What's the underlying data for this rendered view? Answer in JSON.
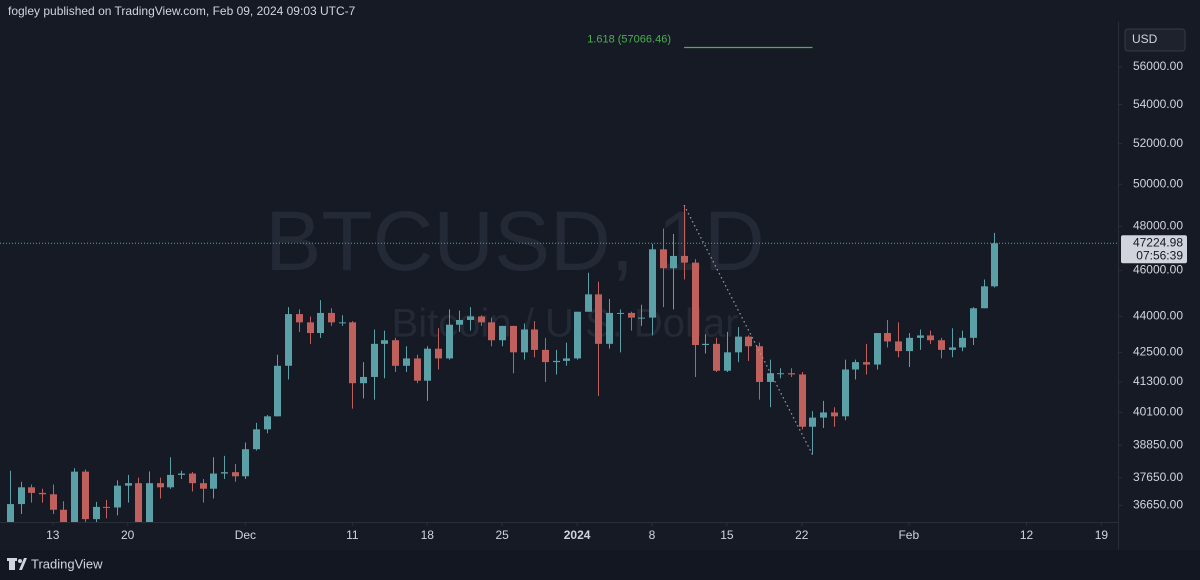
{
  "header": "fogley published on TradingView.com, Feb 09, 2024 09:03 UTC-7",
  "footer": "TradingView",
  "chart_data": {
    "type": "candlestick",
    "watermark": "BTCUSD, 1D",
    "watermark_subtitle": "Bitcoin / U.S. Dollar",
    "currency": "USD",
    "log_scale": true,
    "up_color": "#5aa0a6",
    "down_color": "#c0605d",
    "open": [
      35600,
      36700,
      37300,
      37100,
      37050,
      36500,
      35550,
      37870,
      36170,
      36600,
      36580,
      37360,
      37450,
      35800,
      37450,
      37300,
      37750,
      37800,
      37450,
      37250,
      37800,
      37850,
      37700,
      38700,
      39450,
      39950,
      41950,
      44100,
      43750,
      43300,
      44150,
      43750,
      43750,
      41250,
      41500,
      42850,
      43000,
      41950,
      42250,
      41350,
      42650,
      42250,
      43650,
      43850,
      44000,
      43750,
      43000,
      43600,
      42500,
      43450,
      42600,
      42100,
      42150,
      42250,
      44200,
      44950,
      42850,
      44150,
      44150,
      43950,
      43950,
      46950,
      46100,
      46650,
      46350,
      42800,
      42850,
      41750,
      42500,
      43150,
      42750,
      41300,
      41650,
      41650,
      41600,
      39550,
      39900,
      40100,
      39950,
      41800,
      42100,
      42000,
      43300,
      42950,
      42550,
      43100,
      43200,
      43000,
      42600,
      42700,
      43100,
      44350,
      45300
    ],
    "high": [
      37900,
      37500,
      37400,
      37250,
      37400,
      36800,
      38000,
      37950,
      36780,
      36850,
      37550,
      37750,
      37650,
      37880,
      37650,
      38400,
      37900,
      37850,
      37600,
      38400,
      38450,
      38150,
      38950,
      39700,
      40000,
      42400,
      44400,
      44300,
      44000,
      44700,
      44350,
      44050,
      43800,
      42100,
      43450,
      43400,
      43100,
      42750,
      42400,
      42750,
      43500,
      44300,
      44250,
      44400,
      44050,
      43950,
      43600,
      43600,
      43700,
      43800,
      43100,
      42600,
      42900,
      44200,
      45900,
      45500,
      44750,
      44300,
      44200,
      44500,
      47200,
      47900,
      47650,
      49000,
      46500,
      43250,
      43100,
      43350,
      43550,
      43200,
      42900,
      42200,
      41850,
      41850,
      41700,
      40150,
      40550,
      40300,
      42200,
      42200,
      42850,
      43300,
      43850,
      43750,
      43300,
      43450,
      43400,
      43100,
      43500,
      43400,
      44400,
      45600,
      47700
    ],
    "low": [
      35500,
      36350,
      36750,
      36750,
      36350,
      35100,
      35400,
      35600,
      35900,
      36200,
      36300,
      36750,
      35750,
      35650,
      36900,
      37250,
      37600,
      37150,
      36750,
      36900,
      37600,
      37500,
      37600,
      38650,
      39300,
      39950,
      41400,
      43350,
      42850,
      43100,
      43600,
      43600,
      40250,
      40650,
      40600,
      41450,
      41700,
      41700,
      41250,
      40550,
      41800,
      42200,
      43350,
      43400,
      43600,
      42750,
      42750,
      41650,
      42200,
      42300,
      41300,
      41600,
      41950,
      42200,
      44200,
      40750,
      42650,
      42500,
      43400,
      43600,
      43200,
      44400,
      44300,
      45600,
      41500,
      42450,
      41700,
      41700,
      42100,
      42150,
      40600,
      40300,
      41450,
      41500,
      39450,
      38500,
      39500,
      39550,
      39800,
      41400,
      41600,
      41800,
      42700,
      42300,
      41900,
      42600,
      42850,
      42250,
      42300,
      42550,
      42800,
      44350,
      45250
    ],
    "close": [
      36700,
      37300,
      37100,
      37050,
      36500,
      35550,
      37870,
      36170,
      36600,
      36580,
      37360,
      37450,
      35800,
      37450,
      37300,
      37750,
      37800,
      37450,
      37250,
      37800,
      37850,
      37700,
      38700,
      39450,
      39950,
      41950,
      44100,
      43750,
      43300,
      44150,
      43750,
      43750,
      41250,
      41500,
      42850,
      43000,
      41950,
      42250,
      41350,
      42650,
      42250,
      43650,
      43850,
      44000,
      43750,
      43000,
      43600,
      42500,
      43450,
      42600,
      42100,
      42150,
      42250,
      44200,
      44950,
      42850,
      44150,
      44150,
      43950,
      43950,
      46950,
      46100,
      46650,
      46350,
      42800,
      42850,
      41750,
      42500,
      43150,
      42750,
      41300,
      41650,
      41650,
      41600,
      39550,
      39900,
      40100,
      39950,
      41800,
      42100,
      42000,
      43300,
      42950,
      42550,
      43100,
      43200,
      43000,
      42600,
      42700,
      43100,
      44350,
      45300,
      47224.98
    ],
    "xlim": [
      -0.93,
      103.55
    ],
    "xticks": [
      {
        "value": 4,
        "label": "13"
      },
      {
        "value": 11,
        "label": "20"
      },
      {
        "value": 22,
        "label": "Dec"
      },
      {
        "value": 32,
        "label": "11"
      },
      {
        "value": 39,
        "label": "18"
      },
      {
        "value": 46,
        "label": "25"
      },
      {
        "value": 53,
        "label": "2024"
      },
      {
        "value": 60,
        "label": "8"
      },
      {
        "value": 67,
        "label": "15"
      },
      {
        "value": 74,
        "label": "22"
      },
      {
        "value": 84,
        "label": "Feb"
      },
      {
        "value": 95,
        "label": "12"
      },
      {
        "value": 102,
        "label": "19"
      }
    ],
    "ylim": [
      36070,
      58490
    ],
    "yticks": [
      {
        "value": 36650,
        "label": "36650.00"
      },
      {
        "value": 37650,
        "label": "37650.00"
      },
      {
        "value": 38850,
        "label": "38850.00"
      },
      {
        "value": 40100,
        "label": "40100.00"
      },
      {
        "value": 41300,
        "label": "41300.00"
      },
      {
        "value": 42500,
        "label": "42500.00"
      },
      {
        "value": 44000,
        "label": "44000.00"
      },
      {
        "value": 46000,
        "label": "46000.00"
      },
      {
        "value": 48000,
        "label": "48000.00"
      },
      {
        "value": 50000,
        "label": "50000.00"
      },
      {
        "value": 52000,
        "label": "52000.00"
      },
      {
        "value": 54000,
        "label": "54000.00"
      },
      {
        "value": 56000,
        "label": "56000.00"
      }
    ],
    "last_price": 47224.98,
    "countdown": "07:56:39",
    "fib": {
      "label": "1.618 (57066.46)",
      "level": 57066.46,
      "from": 63,
      "to": 75,
      "color": "#4caf50"
    },
    "trendline": {
      "from": [
        63,
        49000
      ],
      "to": [
        75,
        38500
      ]
    }
  }
}
